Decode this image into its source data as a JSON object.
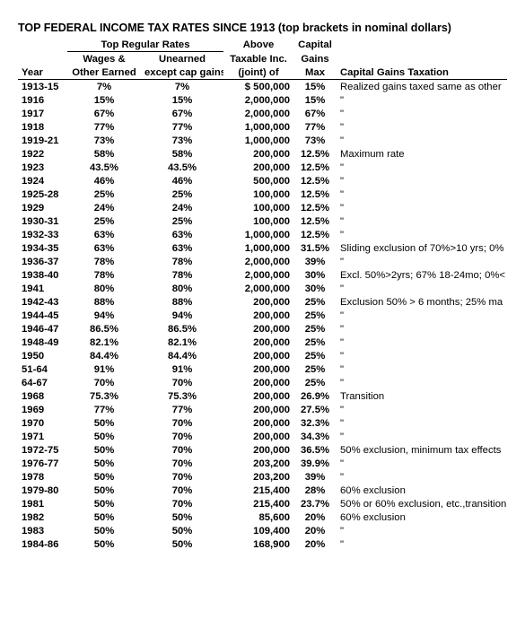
{
  "title": "TOP FEDERAL INCOME TAX RATES SINCE 1913 (top brackets in nominal dollars)",
  "headers": {
    "group_regular": "Top Regular Rates",
    "wages": "Wages & Other Earned",
    "unearned": "Unearned except cap gains",
    "above": "Above Taxable Inc. (joint) of",
    "gains": "Capital Gains Max",
    "year": "Year",
    "note": "Capital Gains Taxation"
  },
  "rows": [
    {
      "year": "1913-15",
      "wages": "7%",
      "unearned": "7%",
      "above": "$ 500,000",
      "gains": "15%",
      "note": "Realized gains taxed same as other"
    },
    {
      "year": "1916",
      "wages": "15%",
      "unearned": "15%",
      "above": "2,000,000",
      "gains": "15%",
      "note": "\""
    },
    {
      "year": "1917",
      "wages": "67%",
      "unearned": "67%",
      "above": "2,000,000",
      "gains": "67%",
      "note": "\""
    },
    {
      "year": "1918",
      "wages": "77%",
      "unearned": "77%",
      "above": "1,000,000",
      "gains": "77%",
      "note": "\""
    },
    {
      "year": "1919-21",
      "wages": "73%",
      "unearned": "73%",
      "above": "1,000,000",
      "gains": "73%",
      "note": "\""
    },
    {
      "year": "1922",
      "wages": "58%",
      "unearned": "58%",
      "above": "200,000",
      "gains": "12.5%",
      "note": "Maximum rate"
    },
    {
      "year": "1923",
      "wages": "43.5%",
      "unearned": "43.5%",
      "above": "200,000",
      "gains": "12.5%",
      "note": "\""
    },
    {
      "year": "1924",
      "wages": "46%",
      "unearned": "46%",
      "above": "500,000",
      "gains": "12.5%",
      "note": "\""
    },
    {
      "year": "1925-28",
      "wages": "25%",
      "unearned": "25%",
      "above": "100,000",
      "gains": "12.5%",
      "note": "\""
    },
    {
      "year": "1929",
      "wages": "24%",
      "unearned": "24%",
      "above": "100,000",
      "gains": "12.5%",
      "note": "\""
    },
    {
      "year": "1930-31",
      "wages": "25%",
      "unearned": "25%",
      "above": "100,000",
      "gains": "12.5%",
      "note": "\""
    },
    {
      "year": "1932-33",
      "wages": "63%",
      "unearned": "63%",
      "above": "1,000,000",
      "gains": "12.5%",
      "note": "\""
    },
    {
      "year": "1934-35",
      "wages": "63%",
      "unearned": "63%",
      "above": "1,000,000",
      "gains": "31.5%",
      "note": "Sliding exclusion of 70%>10 yrs; 0%"
    },
    {
      "year": "1936-37",
      "wages": "78%",
      "unearned": "78%",
      "above": "2,000,000",
      "gains": "39%",
      "note": "\""
    },
    {
      "year": "1938-40",
      "wages": "78%",
      "unearned": "78%",
      "above": "2,000,000",
      "gains": "30%",
      "note": "Excl. 50%>2yrs; 67% 18-24mo; 0%<"
    },
    {
      "year": "1941",
      "wages": "80%",
      "unearned": "80%",
      "above": "2,000,000",
      "gains": "30%",
      "note": "\""
    },
    {
      "year": "1942-43",
      "wages": "88%",
      "unearned": "88%",
      "above": "200,000",
      "gains": "25%",
      "note": "Exclusion 50% > 6 months; 25% ma"
    },
    {
      "year": "1944-45",
      "wages": "94%",
      "unearned": "94%",
      "above": "200,000",
      "gains": "25%",
      "note": "\""
    },
    {
      "year": "1946-47",
      "wages": "86.5%",
      "unearned": "86.5%",
      "above": "200,000",
      "gains": "25%",
      "note": "\""
    },
    {
      "year": "1948-49",
      "wages": "82.1%",
      "unearned": "82.1%",
      "above": "200,000",
      "gains": "25%",
      "note": "\""
    },
    {
      "year": "1950",
      "wages": "84.4%",
      "unearned": "84.4%",
      "above": "200,000",
      "gains": "25%",
      "note": "\""
    },
    {
      "year": "51-64",
      "wages": "91%",
      "unearned": "91%",
      "above": "200,000",
      "gains": "25%",
      "note": "\""
    },
    {
      "year": "64-67",
      "wages": "70%",
      "unearned": "70%",
      "above": "200,000",
      "gains": "25%",
      "note": "\""
    },
    {
      "year": "1968",
      "wages": "75.3%",
      "unearned": "75.3%",
      "above": "200,000",
      "gains": "26.9%",
      "note": "Transition"
    },
    {
      "year": "1969",
      "wages": "77%",
      "unearned": "77%",
      "above": "200,000",
      "gains": "27.5%",
      "note": "\""
    },
    {
      "year": "1970",
      "wages": "50%",
      "unearned": "70%",
      "above": "200,000",
      "gains": "32.3%",
      "note": "\""
    },
    {
      "year": "1971",
      "wages": "50%",
      "unearned": "70%",
      "above": "200,000",
      "gains": "34.3%",
      "note": "\""
    },
    {
      "year": "1972-75",
      "wages": "50%",
      "unearned": "70%",
      "above": "200,000",
      "gains": "36.5%",
      "note": "50% exclusion, minimum tax effects"
    },
    {
      "year": "1976-77",
      "wages": "50%",
      "unearned": "70%",
      "above": "203,200",
      "gains": "39.9%",
      "note": "\""
    },
    {
      "year": "1978",
      "wages": "50%",
      "unearned": "70%",
      "above": "203,200",
      "gains": "39%",
      "note": "\""
    },
    {
      "year": "1979-80",
      "wages": "50%",
      "unearned": "70%",
      "above": "215,400",
      "gains": "28%",
      "note": "60% exclusion"
    },
    {
      "year": "1981",
      "wages": "50%",
      "unearned": "70%",
      "above": "215,400",
      "gains": "23.7%",
      "note": "50% or 60% exclusion, etc.,transition"
    },
    {
      "year": "1982",
      "wages": "50%",
      "unearned": "50%",
      "above": "85,600",
      "gains": "20%",
      "note": "60% exclusion"
    },
    {
      "year": "1983",
      "wages": "50%",
      "unearned": "50%",
      "above": "109,400",
      "gains": "20%",
      "note": "\""
    },
    {
      "year": "1984-86",
      "wages": "50%",
      "unearned": "50%",
      "above": "168,900",
      "gains": "20%",
      "note": "\""
    }
  ]
}
